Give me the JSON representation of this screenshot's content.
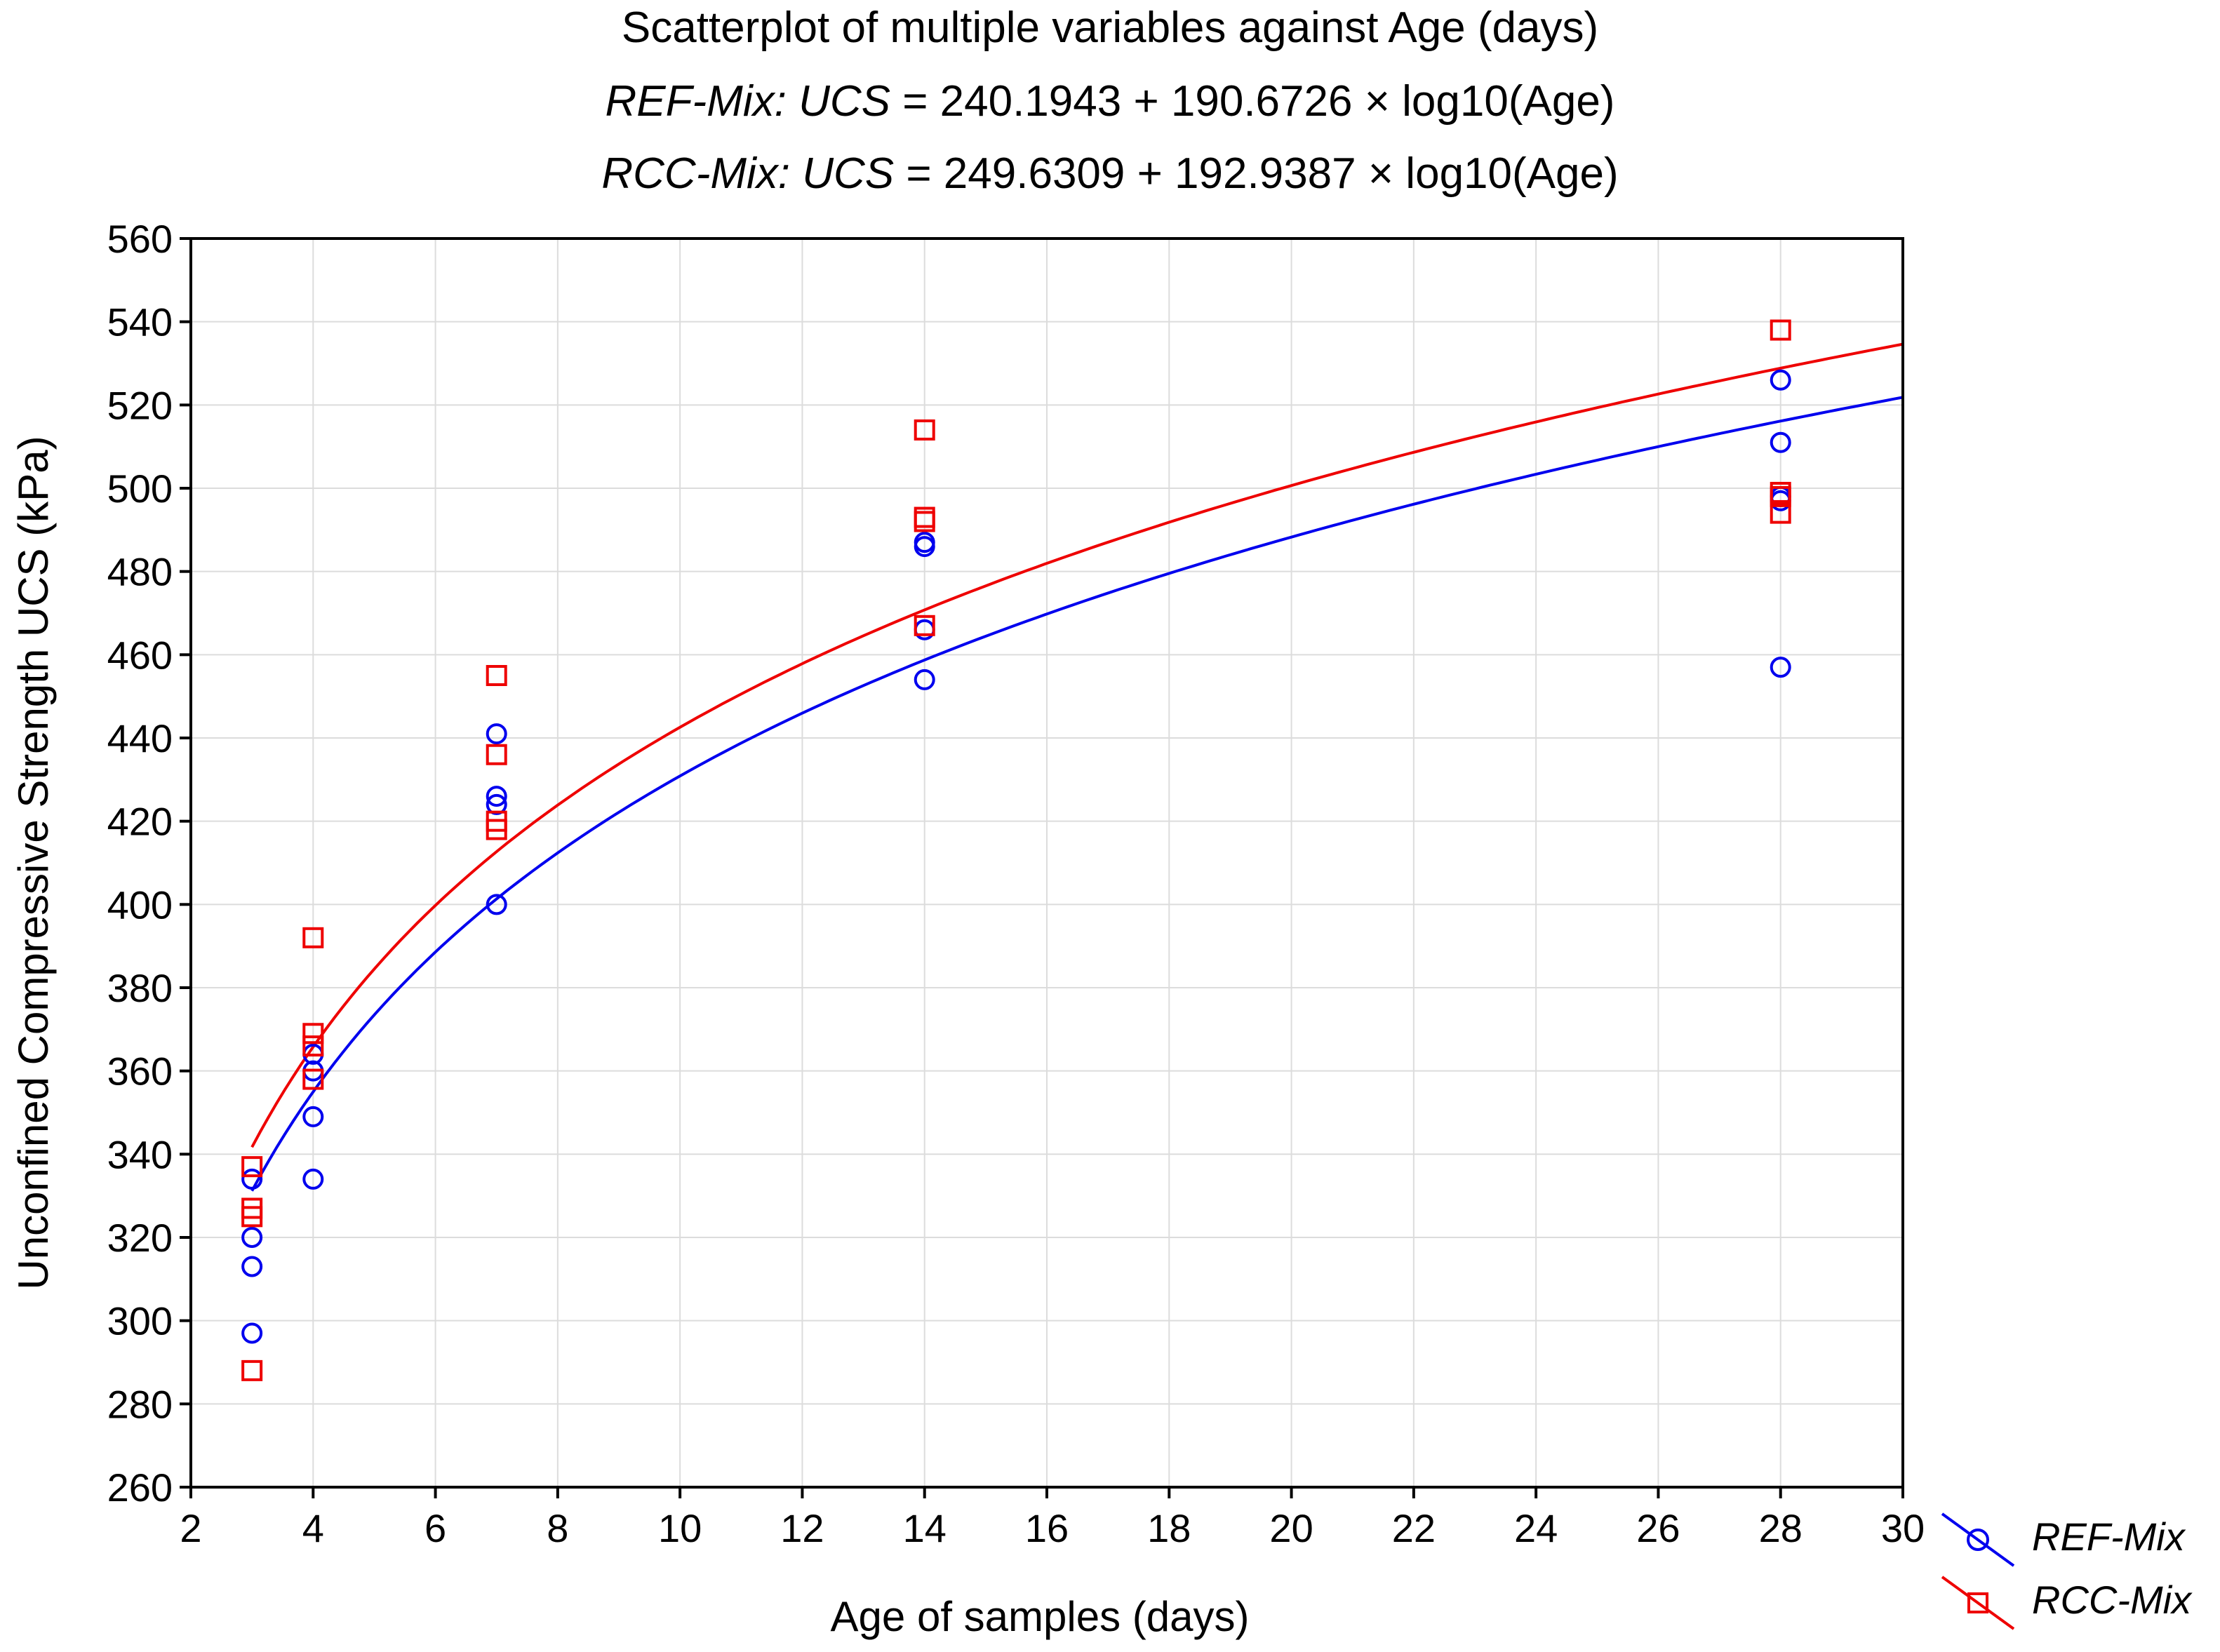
{
  "chart_data": {
    "type": "scatter",
    "title": "Scatterplot of multiple variables against Age (days)",
    "equations": [
      {
        "series": "REF-Mix:",
        "variable": "UCS",
        "rhs": " = 240.1943 + 190.6726 × log10(Age)"
      },
      {
        "series": "RCC-Mix:",
        "variable": "UCS",
        "rhs": " = 249.6309 + 192.9387 × log10(Age)"
      }
    ],
    "xlabel": "Age of samples (days)",
    "ylabel": "Unconfined Compressive Strength UCS (kPa)",
    "xlim": [
      2,
      30
    ],
    "ylim": [
      260,
      560
    ],
    "xticks": [
      2,
      4,
      6,
      8,
      10,
      12,
      14,
      16,
      18,
      20,
      22,
      24,
      26,
      28,
      30
    ],
    "yticks": [
      260,
      280,
      300,
      320,
      340,
      360,
      380,
      400,
      420,
      440,
      460,
      480,
      500,
      520,
      540,
      560
    ],
    "grid": true,
    "legend_position": "bottom-right outside",
    "series": [
      {
        "name": "REF-Mix",
        "marker": "circle",
        "color": "#0000ee",
        "fit": {
          "intercept": 240.1943,
          "slope": 190.6726,
          "model": "log10",
          "x_from": 3,
          "x_to": 30
        },
        "points": [
          [
            3,
            334
          ],
          [
            3,
            320
          ],
          [
            3,
            313
          ],
          [
            3,
            297
          ],
          [
            4,
            364
          ],
          [
            4,
            360
          ],
          [
            4,
            349
          ],
          [
            4,
            334
          ],
          [
            7,
            441
          ],
          [
            7,
            426
          ],
          [
            7,
            424
          ],
          [
            7,
            400
          ],
          [
            14,
            487
          ],
          [
            14,
            486
          ],
          [
            14,
            466
          ],
          [
            14,
            454
          ],
          [
            28,
            526
          ],
          [
            28,
            511
          ],
          [
            28,
            498
          ],
          [
            28,
            497
          ],
          [
            28,
            457
          ]
        ]
      },
      {
        "name": "RCC-Mix",
        "marker": "square",
        "color": "#ee0000",
        "fit": {
          "intercept": 249.6309,
          "slope": 192.9387,
          "model": "log10",
          "x_from": 3,
          "x_to": 30
        },
        "points": [
          [
            3,
            337
          ],
          [
            3,
            327
          ],
          [
            3,
            325
          ],
          [
            3,
            288
          ],
          [
            4,
            392
          ],
          [
            4,
            369
          ],
          [
            4,
            366
          ],
          [
            4,
            358
          ],
          [
            7,
            455
          ],
          [
            7,
            436
          ],
          [
            7,
            420
          ],
          [
            7,
            418
          ],
          [
            14,
            514
          ],
          [
            14,
            493
          ],
          [
            14,
            492
          ],
          [
            14,
            467
          ],
          [
            28,
            538
          ],
          [
            28,
            499
          ],
          [
            28,
            498
          ],
          [
            28,
            494
          ]
        ]
      }
    ]
  }
}
